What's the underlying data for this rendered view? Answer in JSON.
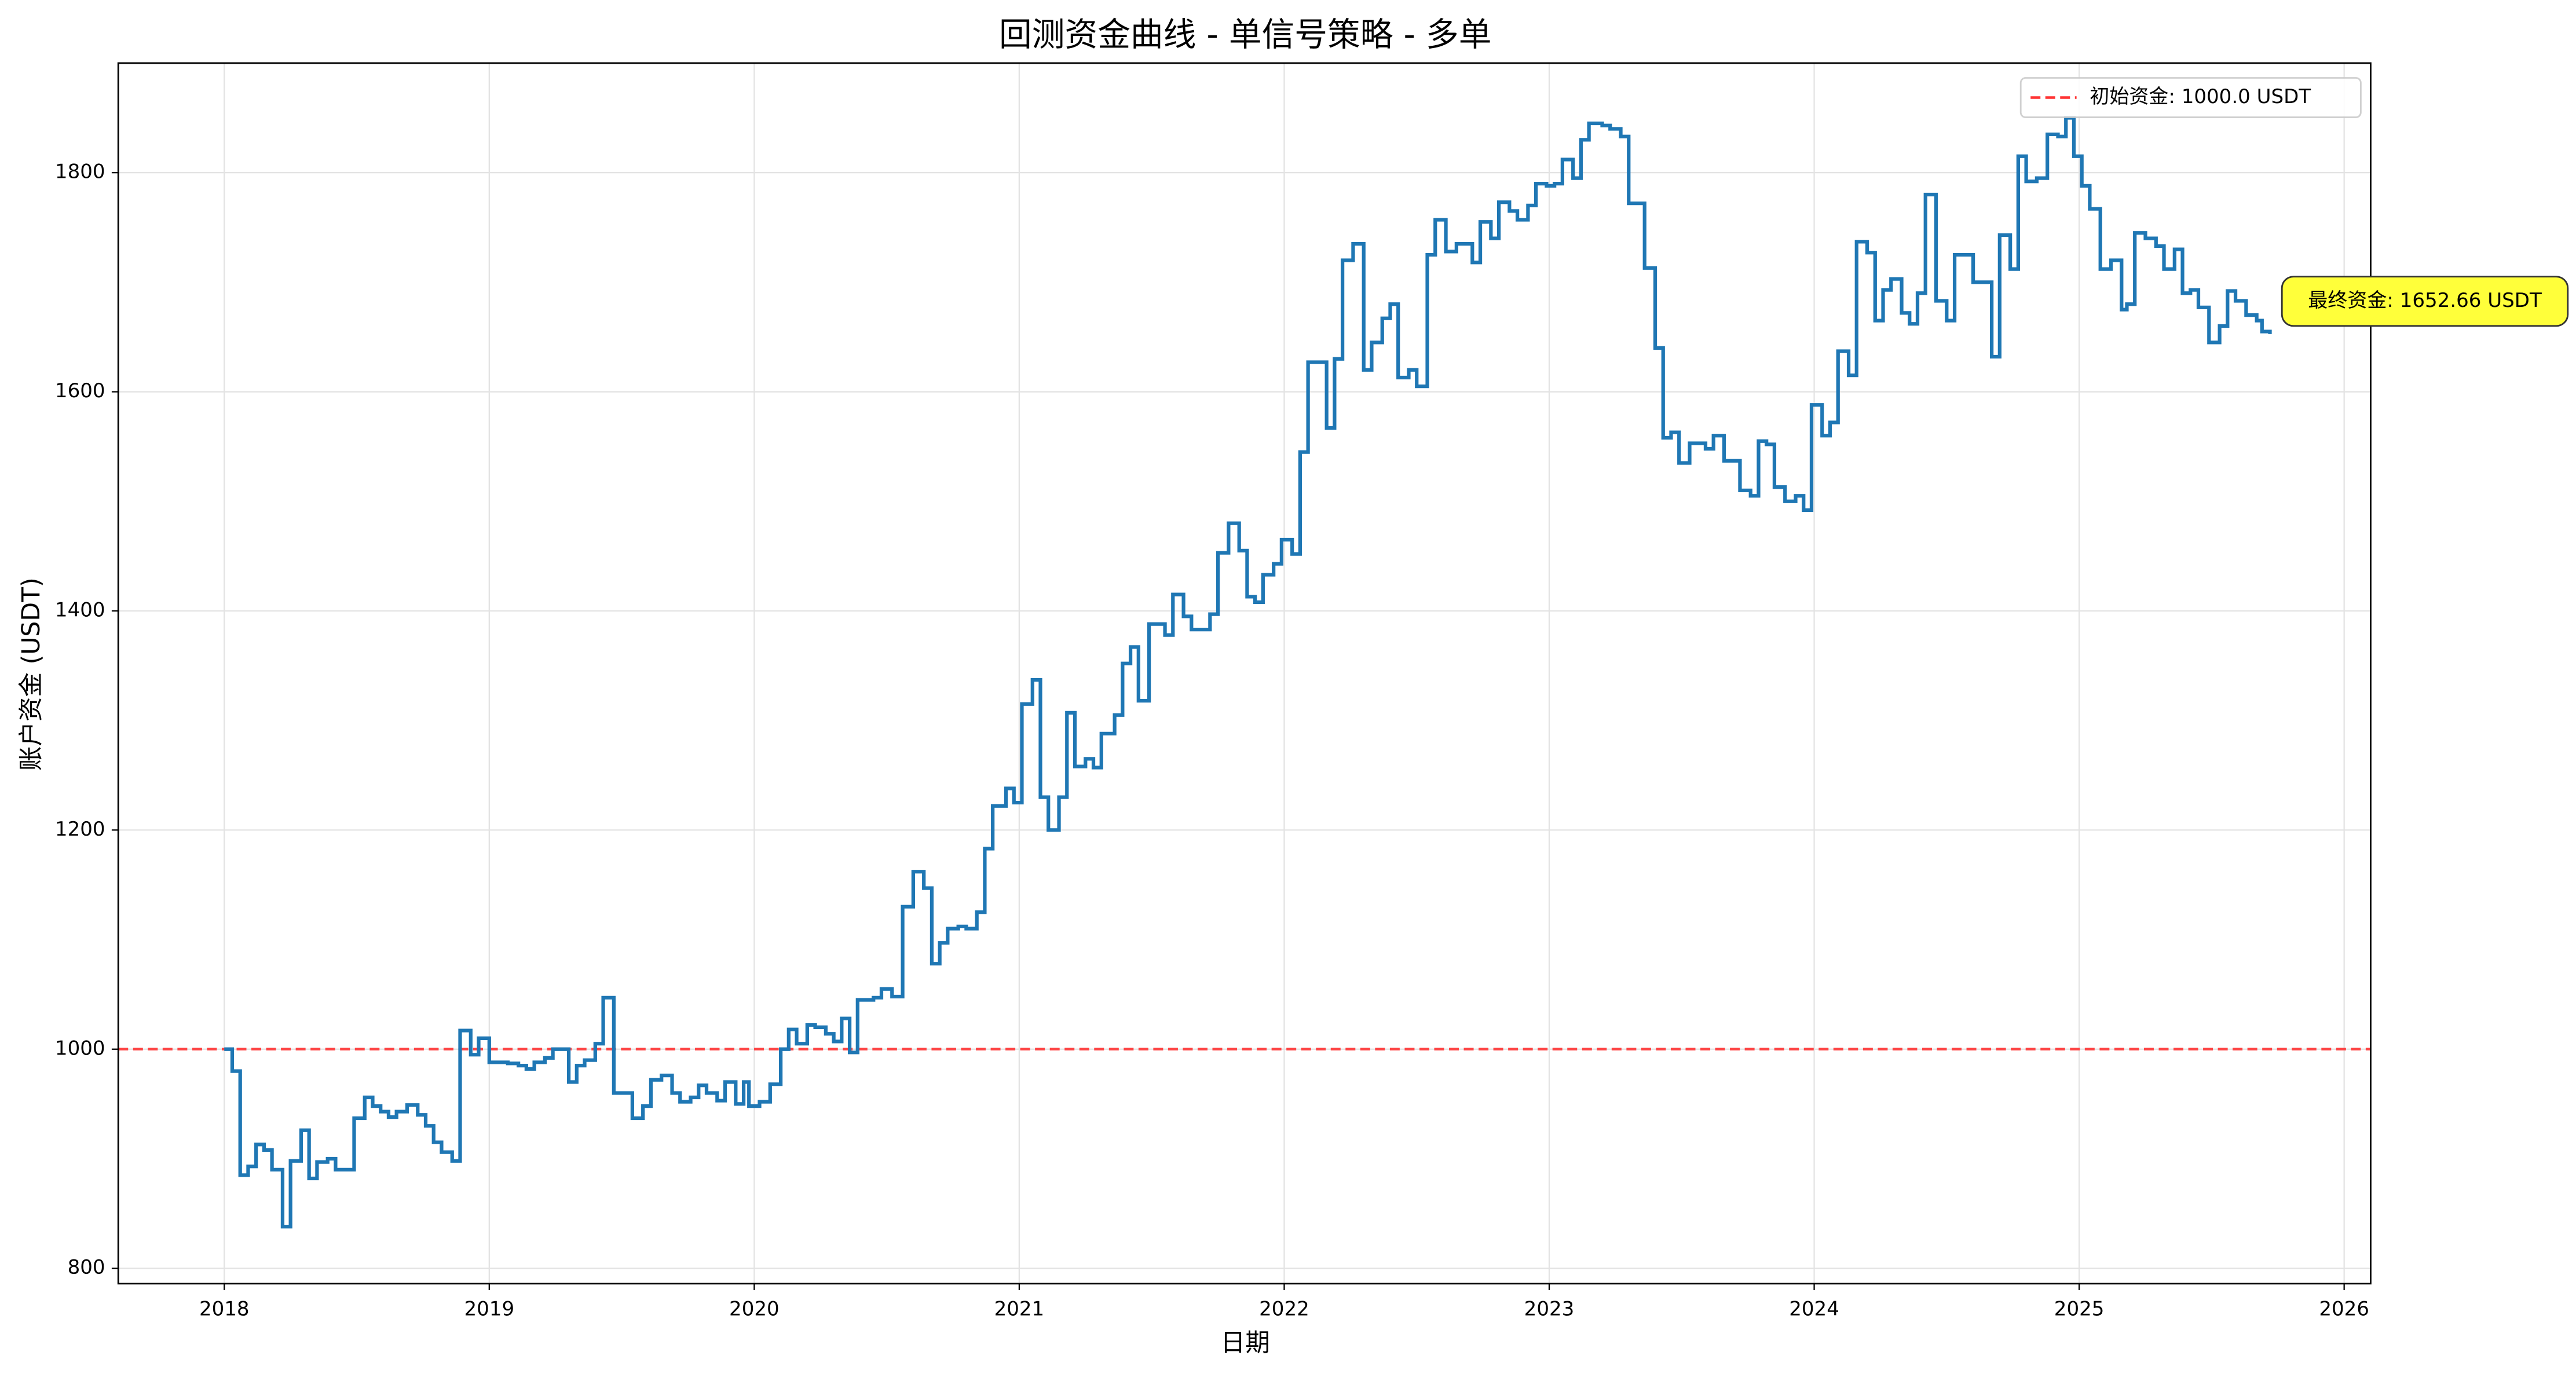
{
  "chart_data": {
    "type": "line",
    "step": "post",
    "title": "回测资金曲线 - 单信号策略 - 多单",
    "x_label": "日期",
    "y_label": "账户资金 (USDT)",
    "xlim": [
      2017.6,
      2026.1
    ],
    "ylim": [
      786,
      1900
    ],
    "xticks": [
      2018,
      2019,
      2020,
      2021,
      2022,
      2023,
      2024,
      2025,
      2026
    ],
    "yticks": [
      800,
      1000,
      1200,
      1400,
      1600,
      1800
    ],
    "grid": true,
    "legend": "upper right",
    "hlines": [
      {
        "value": 1000,
        "label": "初始资金: 1000.0 USDT",
        "color": "#ff3333",
        "style": "dashed"
      }
    ],
    "annotation": "最终资金: 1652.66 USDT",
    "series": [
      {
        "name": "资金",
        "color": "#1f77b4",
        "x": [
          2018.0,
          2018.03,
          2018.06,
          2018.09,
          2018.12,
          2018.15,
          2018.18,
          2018.22,
          2018.25,
          2018.29,
          2018.32,
          2018.35,
          2018.39,
          2018.42,
          2018.49,
          2018.53,
          2018.56,
          2018.59,
          2018.62,
          2018.65,
          2018.69,
          2018.73,
          2018.76,
          2018.79,
          2018.82,
          2018.86,
          2018.89,
          2018.93,
          2018.96,
          2019.0,
          2019.07,
          2019.11,
          2019.14,
          2019.17,
          2019.21,
          2019.24,
          2019.3,
          2019.33,
          2019.36,
          2019.4,
          2019.43,
          2019.47,
          2019.54,
          2019.58,
          2019.61,
          2019.65,
          2019.69,
          2019.72,
          2019.76,
          2019.79,
          2019.82,
          2019.86,
          2019.89,
          2019.93,
          2019.96,
          2019.98,
          2020.02,
          2020.06,
          2020.1,
          2020.13,
          2020.16,
          2020.2,
          2020.23,
          2020.27,
          2020.3,
          2020.33,
          2020.36,
          2020.39,
          2020.45,
          2020.48,
          2020.52,
          2020.56,
          2020.6,
          2020.64,
          2020.67,
          2020.7,
          2020.73,
          2020.77,
          2020.8,
          2020.84,
          2020.87,
          2020.9,
          2020.95,
          2020.98,
          2021.01,
          2021.05,
          2021.08,
          2021.11,
          2021.15,
          2021.18,
          2021.21,
          2021.25,
          2021.28,
          2021.31,
          2021.36,
          2021.39,
          2021.42,
          2021.45,
          2021.49,
          2021.55,
          2021.58,
          2021.62,
          2021.65,
          2021.69,
          2021.72,
          2021.75,
          2021.79,
          2021.83,
          2021.86,
          2021.89,
          2021.92,
          2021.96,
          2021.99,
          2022.03,
          2022.06,
          2022.09,
          2022.16,
          2022.19,
          2022.22,
          2022.26,
          2022.3,
          2022.33,
          2022.37,
          2022.4,
          2022.43,
          2022.47,
          2022.5,
          2022.54,
          2022.57,
          2022.61,
          2022.65,
          2022.71,
          2022.74,
          2022.78,
          2022.81,
          2022.85,
          2022.88,
          2022.92,
          2022.95,
          2022.99,
          2023.02,
          2023.05,
          2023.09,
          2023.12,
          2023.15,
          2023.2,
          2023.23,
          2023.27,
          2023.3,
          2023.36,
          2023.4,
          2023.43,
          2023.46,
          2023.49,
          2023.53,
          2023.59,
          2023.62,
          2023.66,
          2023.72,
          2023.76,
          2023.79,
          2023.82,
          2023.85,
          2023.89,
          2023.93,
          2023.96,
          2023.99,
          2024.03,
          2024.06,
          2024.09,
          2024.13,
          2024.16,
          2024.2,
          2024.23,
          2024.26,
          2024.29,
          2024.33,
          2024.36,
          2024.39,
          2024.42,
          2024.46,
          2024.5,
          2024.53,
          2024.6,
          2024.67,
          2024.7,
          2024.74,
          2024.77,
          2024.8,
          2024.84,
          2024.88,
          2024.92,
          2024.95,
          2024.98,
          2025.01,
          2025.04,
          2025.08,
          2025.12,
          2025.16,
          2025.18,
          2025.21,
          2025.25,
          2025.29,
          2025.32,
          2025.36,
          2025.39,
          2025.42,
          2025.45,
          2025.49,
          2025.53,
          2025.56,
          2025.59,
          2025.63,
          2025.67,
          2025.69,
          2025.72
        ],
        "values": [
          1000,
          980,
          885,
          893,
          913,
          908,
          890,
          838,
          898,
          926,
          882,
          897,
          900,
          890,
          937,
          956,
          948,
          943,
          938,
          943,
          949,
          940,
          930,
          915,
          906,
          898,
          1017,
          995,
          1010,
          988,
          987,
          985,
          982,
          988,
          992,
          1000,
          970,
          985,
          990,
          1005,
          1047,
          960,
          937,
          948,
          972,
          976,
          960,
          952,
          956,
          967,
          960,
          953,
          970,
          950,
          970,
          948,
          952,
          968,
          1000,
          1018,
          1005,
          1022,
          1020,
          1014,
          1007,
          1028,
          997,
          1045,
          1047,
          1055,
          1048,
          1130,
          1162,
          1147,
          1078,
          1097,
          1110,
          1112,
          1110,
          1125,
          1183,
          1222,
          1238,
          1225,
          1315,
          1337,
          1230,
          1200,
          1230,
          1307,
          1258,
          1265,
          1257,
          1288,
          1305,
          1352,
          1367,
          1318,
          1388,
          1378,
          1415,
          1395,
          1383,
          1383,
          1397,
          1453,
          1480,
          1455,
          1413,
          1408,
          1433,
          1443,
          1465,
          1452,
          1545,
          1627,
          1567,
          1630,
          1720,
          1735,
          1620,
          1645,
          1667,
          1680,
          1613,
          1620,
          1605,
          1725,
          1757,
          1728,
          1735,
          1718,
          1755,
          1740,
          1773,
          1765,
          1757,
          1770,
          1790,
          1788,
          1790,
          1812,
          1795,
          1830,
          1845,
          1843,
          1840,
          1833,
          1772,
          1713,
          1640,
          1558,
          1563,
          1535,
          1553,
          1548,
          1560,
          1537,
          1510,
          1505,
          1555,
          1552,
          1513,
          1500,
          1505,
          1492,
          1588,
          1560,
          1572,
          1637,
          1615,
          1737,
          1727,
          1665,
          1693,
          1703,
          1672,
          1662,
          1690,
          1780,
          1683,
          1665,
          1725,
          1700,
          1632,
          1743,
          1712,
          1815,
          1792,
          1795,
          1835,
          1833,
          1850,
          1815,
          1788,
          1767,
          1712,
          1720,
          1675,
          1680,
          1745,
          1740,
          1733,
          1712,
          1730,
          1690,
          1693,
          1677,
          1645,
          1660,
          1692,
          1683,
          1670,
          1665,
          1655,
          1652.66
        ]
      }
    ]
  }
}
